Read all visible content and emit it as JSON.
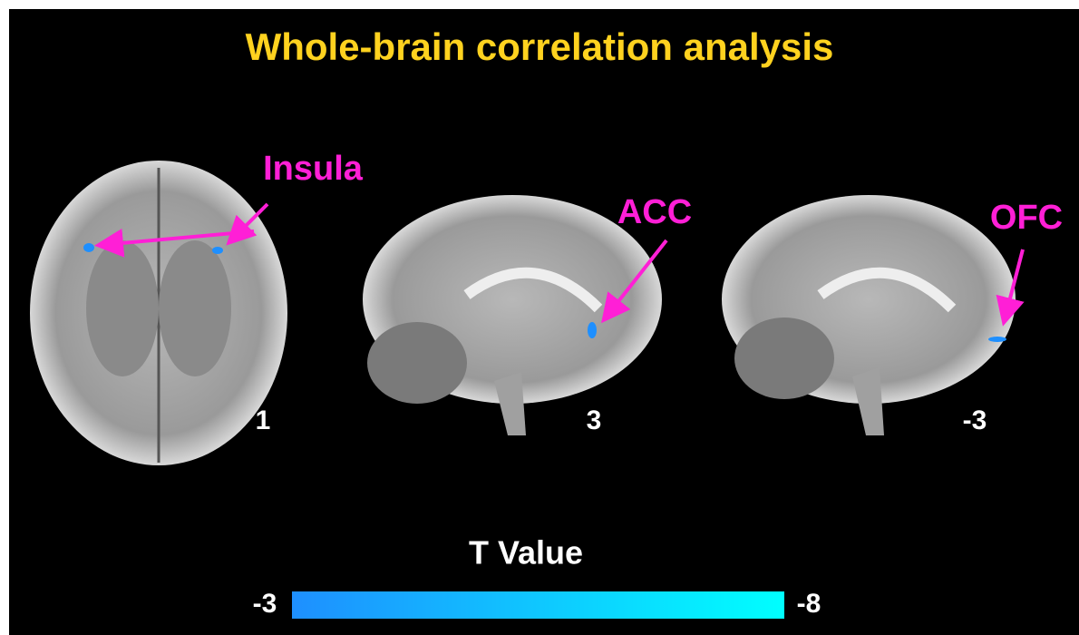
{
  "title": "Whole-brain correlation analysis",
  "panels": [
    {
      "region_label": "Insula",
      "slice_label": "1"
    },
    {
      "region_label": "ACC",
      "slice_label": "3"
    },
    {
      "region_label": "OFC",
      "slice_label": "-3"
    }
  ],
  "colorbar": {
    "title": "T Value",
    "min_label": "-3",
    "max_label": "-8"
  }
}
